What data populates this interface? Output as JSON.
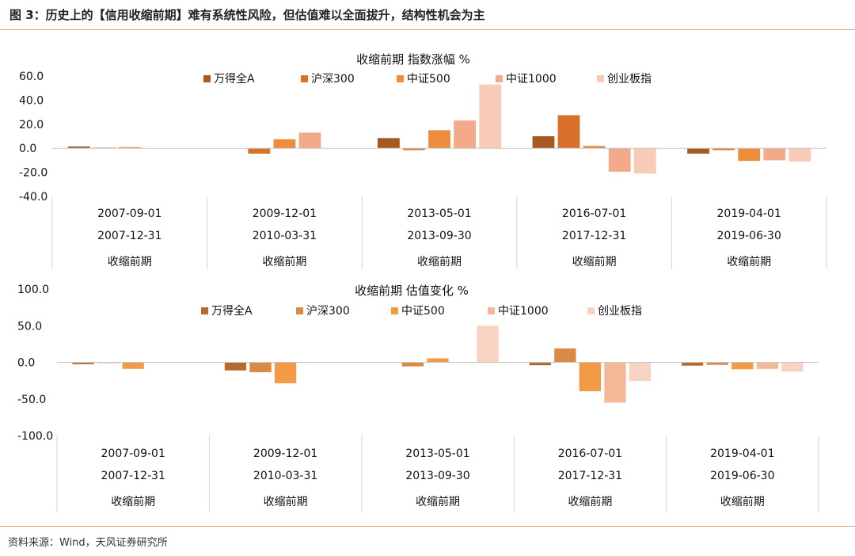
{
  "figure_title": "图 3：历史上的【信用收缩前期】难有系统性风险，但估值难以全面拔升，结构性机会为主",
  "source": "资料来源：Wind，天风证券研究所",
  "colors": {
    "rule": "#e8a06a",
    "top_series": [
      "#a65a22",
      "#d9712b",
      "#ee8c3e",
      "#f2aa8a",
      "#f7cbb7"
    ],
    "bottom_series": [
      "#b86a2c",
      "#db8a45",
      "#f49a45",
      "#f5b896",
      "#f9d3c2"
    ]
  },
  "chart_data": [
    {
      "type": "bar",
      "title": "收缩前期 指数涨幅 %",
      "ylim": [
        -40,
        60
      ],
      "yticks": [
        "60.0",
        "40.0",
        "20.0",
        "0.0",
        "-20.0",
        "-40.0"
      ],
      "ytick_values": [
        60,
        40,
        20,
        0,
        -20,
        -40
      ],
      "legend_position": "top",
      "categories": [
        {
          "start": "2007-09-01",
          "end": "2007-12-31",
          "phase": "收缩前期"
        },
        {
          "start": "2009-12-01",
          "end": "2010-03-31",
          "phase": "收缩前期"
        },
        {
          "start": "2013-05-01",
          "end": "2013-09-30",
          "phase": "收缩前期"
        },
        {
          "start": "2016-07-01",
          "end": "2017-12-31",
          "phase": "收缩前期"
        },
        {
          "start": "2019-04-01",
          "end": "2019-06-30",
          "phase": "收缩前期"
        }
      ],
      "series": [
        {
          "name": "万得全A",
          "values": [
            1.5,
            0,
            8.5,
            10,
            -4.5
          ]
        },
        {
          "name": "沪深300",
          "values": [
            0.5,
            -4.5,
            -1.5,
            27.5,
            -1.5
          ]
        },
        {
          "name": "中证500",
          "values": [
            1.0,
            7.5,
            15,
            2,
            -10.5
          ]
        },
        {
          "name": "中证1000",
          "values": [
            0,
            13,
            23,
            -19.5,
            -10
          ]
        },
        {
          "name": "创业板指",
          "values": [
            0,
            0,
            53,
            -21,
            -11
          ]
        }
      ]
    },
    {
      "type": "bar",
      "title": "收缩前期 估值变化 %",
      "ylim": [
        -100,
        100
      ],
      "yticks": [
        "100.0",
        "50.0",
        "0.0",
        "-50.0",
        "-100.0"
      ],
      "ytick_values": [
        100,
        50,
        0,
        -50,
        -100
      ],
      "legend_position": "top",
      "categories": [
        {
          "start": "2007-09-01",
          "end": "2007-12-31",
          "phase": "收缩前期"
        },
        {
          "start": "2009-12-01",
          "end": "2010-03-31",
          "phase": "收缩前期"
        },
        {
          "start": "2013-05-01",
          "end": "2013-09-30",
          "phase": "收缩前期"
        },
        {
          "start": "2016-07-01",
          "end": "2017-12-31",
          "phase": "收缩前期"
        },
        {
          "start": "2019-04-01",
          "end": "2019-06-30",
          "phase": "收缩前期"
        }
      ],
      "series": [
        {
          "name": "万得全A",
          "values": [
            -2.5,
            -11,
            0,
            -4,
            -4.5
          ]
        },
        {
          "name": "沪深300",
          "values": [
            -1,
            -13.5,
            -5.5,
            19,
            -3.5
          ]
        },
        {
          "name": "中证500",
          "values": [
            -9,
            -28.5,
            5.5,
            -39.5,
            -9.5
          ]
        },
        {
          "name": "中证1000",
          "values": [
            0,
            0,
            0,
            -55,
            -9
          ]
        },
        {
          "name": "创业板指",
          "values": [
            0,
            0,
            50,
            -25.5,
            -12.5
          ]
        }
      ]
    }
  ]
}
